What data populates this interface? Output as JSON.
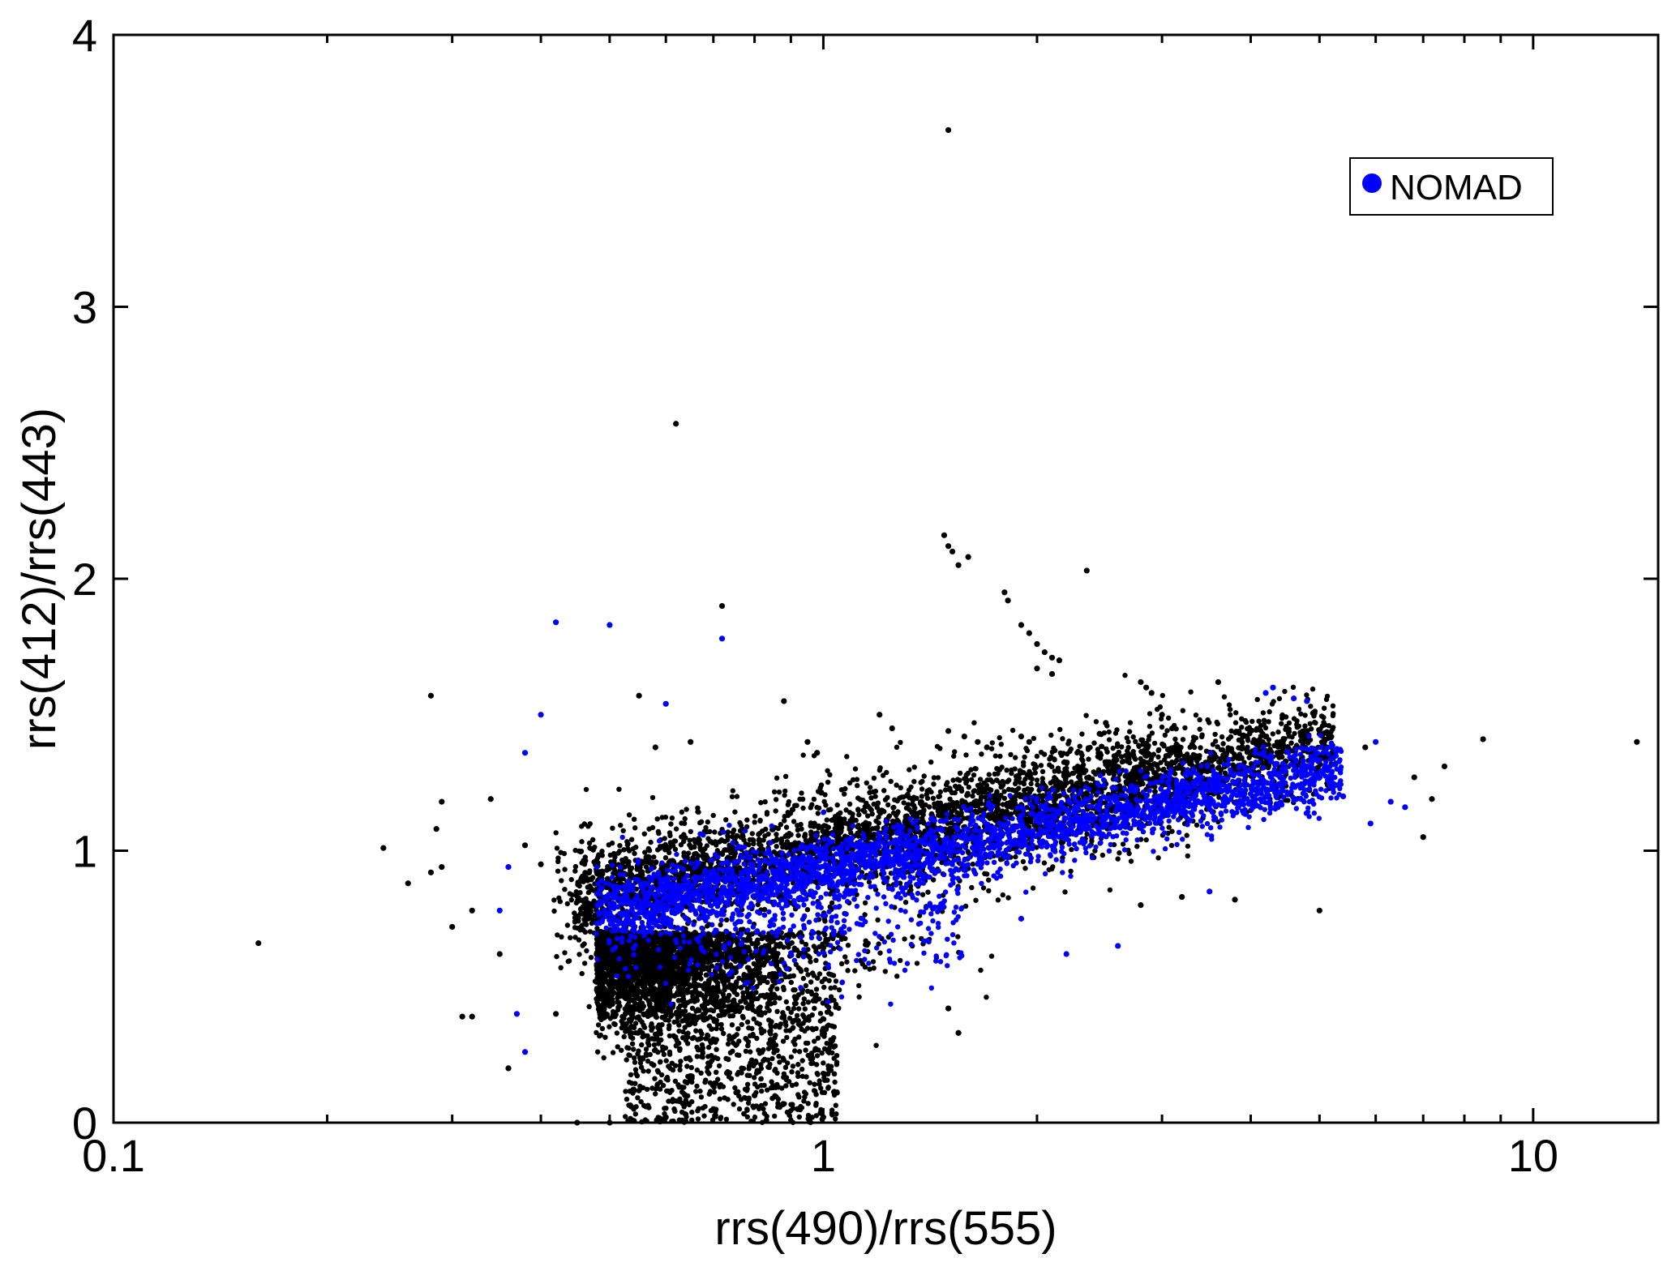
{
  "chart_data": {
    "type": "scatter",
    "title": "",
    "xlabel": "rrs(490)/rrs(555)",
    "ylabel": "rrs(412)/rrs(443)",
    "x_scale": "log",
    "xlim": [
      0.1,
      15
    ],
    "ylim": [
      0,
      4
    ],
    "x_ticks": [
      0.1,
      1,
      10
    ],
    "x_tick_labels": [
      "0.1",
      "1",
      "10"
    ],
    "y_ticks": [
      0,
      1,
      2,
      3,
      4
    ],
    "y_tick_labels": [
      "0",
      "1",
      "2",
      "3",
      "4"
    ],
    "grid": false,
    "legend": {
      "position": "top-right",
      "entries": [
        {
          "label": "NOMAD",
          "color": "#0000ff"
        }
      ]
    },
    "series": [
      {
        "name": "",
        "color": "#000000",
        "points": [
          [
            0.16,
            0.66
          ],
          [
            0.24,
            1.01
          ],
          [
            0.26,
            0.88
          ],
          [
            0.28,
            1.57
          ],
          [
            0.28,
            0.92
          ],
          [
            0.29,
            1.18
          ],
          [
            0.285,
            1.08
          ],
          [
            0.29,
            0.94
          ],
          [
            0.3,
            0.72
          ],
          [
            0.31,
            0.39
          ],
          [
            0.32,
            0.39
          ],
          [
            0.32,
            0.78
          ],
          [
            0.34,
            1.19
          ],
          [
            0.35,
            0.62
          ],
          [
            0.36,
            0.2
          ],
          [
            0.38,
            1.02
          ],
          [
            0.4,
            0.95
          ],
          [
            0.42,
            0.4
          ],
          [
            0.45,
            0.0
          ],
          [
            0.5,
            0.0
          ],
          [
            0.55,
            1.57
          ],
          [
            0.58,
            1.38
          ],
          [
            0.62,
            2.57
          ],
          [
            0.65,
            1.4
          ],
          [
            0.72,
            1.9
          ],
          [
            0.88,
            1.55
          ],
          [
            0.95,
            1.4
          ],
          [
            0.98,
            1.36
          ],
          [
            1.2,
            1.5
          ],
          [
            1.25,
            1.45
          ],
          [
            1.48,
            2.16
          ],
          [
            1.5,
            2.12
          ],
          [
            1.52,
            2.1
          ],
          [
            1.55,
            2.05
          ],
          [
            1.6,
            2.08
          ],
          [
            1.5,
            3.65
          ],
          [
            1.5,
            1.44
          ],
          [
            1.58,
            1.42
          ],
          [
            1.65,
            1.4
          ],
          [
            1.7,
            1.38
          ],
          [
            1.8,
            1.95
          ],
          [
            1.82,
            1.92
          ],
          [
            1.9,
            1.83
          ],
          [
            1.95,
            1.8
          ],
          [
            2.0,
            1.76
          ],
          [
            2.05,
            1.73
          ],
          [
            2.1,
            1.71
          ],
          [
            2.15,
            1.7
          ],
          [
            2.0,
            1.67
          ],
          [
            2.1,
            1.65
          ],
          [
            1.9,
            1.42
          ],
          [
            1.95,
            1.4
          ],
          [
            2.35,
            2.03
          ],
          [
            2.45,
            1.43
          ],
          [
            2.5,
            1.47
          ],
          [
            2.8,
            1.62
          ],
          [
            2.85,
            1.6
          ],
          [
            2.9,
            1.58
          ],
          [
            3.0,
            1.5
          ],
          [
            3.1,
            1.45
          ],
          [
            3.6,
            1.62
          ],
          [
            5.0,
            0.78
          ],
          [
            5.8,
            1.38
          ],
          [
            6.8,
            1.27
          ],
          [
            7.2,
            1.19
          ],
          [
            7.0,
            1.05
          ],
          [
            7.5,
            1.31
          ],
          [
            8.5,
            1.41
          ],
          [
            14.0,
            1.4
          ],
          [
            2.8,
            0.8
          ],
          [
            3.2,
            0.83
          ],
          [
            3.8,
            0.82
          ],
          [
            1.5,
            0.42
          ],
          [
            1.55,
            0.33
          ],
          [
            0.92,
            0.05
          ],
          [
            1.0,
            0.02
          ],
          [
            0.8,
            0.1
          ],
          [
            0.7,
            0.05
          ],
          [
            0.6,
            0.02
          ]
        ]
      },
      {
        "name": "NOMAD",
        "color": "#0000ff",
        "points": [
          [
            0.42,
            1.84
          ],
          [
            0.5,
            1.83
          ],
          [
            0.72,
            1.78
          ],
          [
            0.4,
            1.5
          ],
          [
            0.6,
            1.54
          ],
          [
            0.38,
            0.26
          ],
          [
            0.37,
            0.4
          ],
          [
            0.35,
            0.78
          ],
          [
            0.36,
            0.94
          ],
          [
            0.38,
            1.36
          ],
          [
            4.2,
            1.58
          ],
          [
            4.3,
            1.6
          ],
          [
            4.6,
            1.56
          ],
          [
            4.8,
            1.55
          ],
          [
            5.2,
            1.38
          ],
          [
            6.0,
            1.4
          ],
          [
            6.3,
            1.18
          ],
          [
            6.6,
            1.16
          ],
          [
            5.9,
            1.1
          ],
          [
            5.4,
            1.2
          ],
          [
            2.2,
            0.62
          ],
          [
            2.6,
            0.65
          ],
          [
            1.9,
            0.75
          ],
          [
            3.5,
            0.85
          ]
        ]
      }
    ]
  }
}
